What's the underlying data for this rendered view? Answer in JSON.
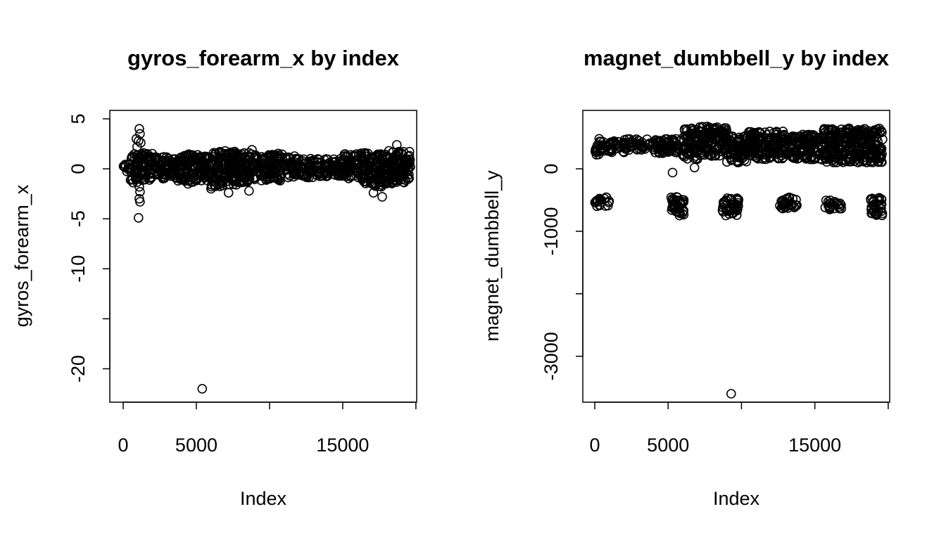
{
  "chart_data": [
    {
      "type": "scatter",
      "title": "gyros_forearm_x by index",
      "xlabel": "Index",
      "ylabel": "gyros_forearm_x",
      "xlim": [
        0,
        19622
      ],
      "ylim": [
        -22.5,
        5
      ],
      "x_ticks": [
        {
          "value": 0,
          "label": "0"
        },
        {
          "value": 5000,
          "label": "5000"
        },
        {
          "value": 10000,
          "label": ""
        },
        {
          "value": 15000,
          "label": "15000"
        },
        {
          "value": 20000,
          "label": ""
        }
      ],
      "y_ticks": [
        {
          "value": 5,
          "label": "5"
        },
        {
          "value": 0,
          "label": "0"
        },
        {
          "value": -5,
          "label": "-5"
        },
        {
          "value": -10,
          "label": "-10"
        },
        {
          "value": -15,
          "label": ""
        },
        {
          "value": -20,
          "label": "-20"
        }
      ],
      "bands": [
        {
          "x": [
            0,
            500
          ],
          "y": [
            -0.4,
            0.6
          ]
        },
        {
          "x": [
            500,
            1000
          ],
          "y": [
            -1.5,
            1.5
          ]
        },
        {
          "x": [
            1000,
            2000
          ],
          "y": [
            -1.2,
            1.6
          ]
        },
        {
          "x": [
            2000,
            3000
          ],
          "y": [
            -1.0,
            1.2
          ]
        },
        {
          "x": [
            3000,
            4000
          ],
          "y": [
            -1.2,
            1.2
          ]
        },
        {
          "x": [
            4000,
            5000
          ],
          "y": [
            -1.5,
            1.5
          ]
        },
        {
          "x": [
            5000,
            6000
          ],
          "y": [
            -1.3,
            1.4
          ]
        },
        {
          "x": [
            6000,
            7000
          ],
          "y": [
            -1.8,
            1.8
          ]
        },
        {
          "x": [
            7000,
            8000
          ],
          "y": [
            -1.6,
            1.8
          ]
        },
        {
          "x": [
            8000,
            9000
          ],
          "y": [
            -1.4,
            1.6
          ]
        },
        {
          "x": [
            9000,
            10000
          ],
          "y": [
            -1.2,
            1.4
          ]
        },
        {
          "x": [
            10000,
            11000
          ],
          "y": [
            -1.2,
            1.6
          ]
        },
        {
          "x": [
            11000,
            12000
          ],
          "y": [
            -0.9,
            1.3
          ]
        },
        {
          "x": [
            12000,
            13000
          ],
          "y": [
            -0.9,
            1.1
          ]
        },
        {
          "x": [
            13000,
            14000
          ],
          "y": [
            -0.8,
            1.0
          ]
        },
        {
          "x": [
            14000,
            15000
          ],
          "y": [
            -0.8,
            1.0
          ]
        },
        {
          "x": [
            15000,
            16000
          ],
          "y": [
            -1.0,
            1.5
          ]
        },
        {
          "x": [
            16000,
            17000
          ],
          "y": [
            -1.5,
            1.6
          ]
        },
        {
          "x": [
            17000,
            18000
          ],
          "y": [
            -1.8,
            1.6
          ]
        },
        {
          "x": [
            18000,
            19000
          ],
          "y": [
            -1.6,
            1.8
          ]
        },
        {
          "x": [
            19000,
            19622
          ],
          "y": [
            -1.6,
            1.8
          ]
        }
      ],
      "outliers": [
        {
          "x": 1100,
          "y": 4.0
        },
        {
          "x": 1150,
          "y": 3.5
        },
        {
          "x": 900,
          "y": 3.0
        },
        {
          "x": 1050,
          "y": 2.8
        },
        {
          "x": 1200,
          "y": 2.6
        },
        {
          "x": 950,
          "y": 2.2
        },
        {
          "x": 1100,
          "y": -1.8
        },
        {
          "x": 1150,
          "y": -2.3
        },
        {
          "x": 1100,
          "y": -3.0
        },
        {
          "x": 1150,
          "y": -3.3
        },
        {
          "x": 1050,
          "y": -4.9
        },
        {
          "x": 5400,
          "y": -22.0
        },
        {
          "x": 7200,
          "y": -2.4
        },
        {
          "x": 8600,
          "y": -2.2
        },
        {
          "x": 17100,
          "y": -2.4
        },
        {
          "x": 17700,
          "y": -2.8
        },
        {
          "x": 18700,
          "y": 2.4
        },
        {
          "x": 6000,
          "y": -2.0
        },
        {
          "x": 8800,
          "y": 1.9
        }
      ]
    },
    {
      "type": "scatter",
      "title": "magnet_dumbbell_y by index",
      "xlabel": "Index",
      "ylabel": "magnet_dumbbell_y",
      "xlim": [
        0,
        19622
      ],
      "ylim": [
        -3600,
        800
      ],
      "x_ticks": [
        {
          "value": 0,
          "label": "0"
        },
        {
          "value": 5000,
          "label": "5000"
        },
        {
          "value": 10000,
          "label": ""
        },
        {
          "value": 15000,
          "label": "15000"
        },
        {
          "value": 20000,
          "label": ""
        }
      ],
      "y_ticks": [
        {
          "value": 0,
          "label": "0"
        },
        {
          "value": -1000,
          "label": "-1000"
        },
        {
          "value": -2000,
          "label": ""
        },
        {
          "value": -3000,
          "label": "-3000"
        }
      ],
      "bands": [
        {
          "x": [
            0,
            500
          ],
          "y": [
            200,
            450
          ]
        },
        {
          "x": [
            500,
            2000
          ],
          "y": [
            250,
            450
          ]
        },
        {
          "x": [
            2000,
            4000
          ],
          "y": [
            300,
            480
          ]
        },
        {
          "x": [
            4000,
            6000
          ],
          "y": [
            250,
            500
          ]
        },
        {
          "x": [
            6000,
            7000
          ],
          "y": [
            150,
            650
          ]
        },
        {
          "x": [
            7000,
            9000
          ],
          "y": [
            200,
            680
          ]
        },
        {
          "x": [
            9000,
            10500
          ],
          "y": [
            100,
            550
          ]
        },
        {
          "x": [
            10500,
            13000
          ],
          "y": [
            150,
            600
          ]
        },
        {
          "x": [
            13000,
            15500
          ],
          "y": [
            150,
            550
          ]
        },
        {
          "x": [
            15500,
            17000
          ],
          "y": [
            100,
            650
          ]
        },
        {
          "x": [
            17000,
            19622
          ],
          "y": [
            100,
            650
          ]
        },
        {
          "x": [
            0,
            1000
          ],
          "y": [
            -600,
            -450
          ]
        },
        {
          "x": [
            5200,
            6200
          ],
          "y": [
            -750,
            -450
          ]
        },
        {
          "x": [
            8700,
            9800
          ],
          "y": [
            -750,
            -450
          ]
        },
        {
          "x": [
            12600,
            13800
          ],
          "y": [
            -650,
            -450
          ]
        },
        {
          "x": [
            15700,
            16800
          ],
          "y": [
            -650,
            -500
          ]
        },
        {
          "x": [
            18700,
            19622
          ],
          "y": [
            -750,
            -450
          ]
        }
      ],
      "outliers": [
        {
          "x": 5300,
          "y": -60
        },
        {
          "x": 9300,
          "y": -3600
        },
        {
          "x": 6800,
          "y": 20
        },
        {
          "x": 300,
          "y": 480
        }
      ]
    }
  ]
}
